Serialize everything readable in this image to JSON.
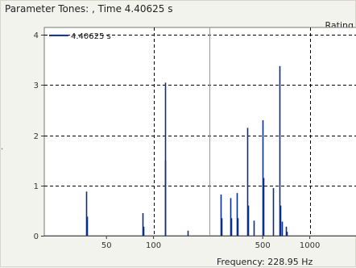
{
  "window": {
    "title": "Parameter Tones: , Time 4.40625 s",
    "rating_label": "Rating",
    "frequency_readout": "Frequency: 228.95 Hz",
    "left_edge_mark": "."
  },
  "colors": {
    "background": "#f3f3ee",
    "plot_bg": "#ffffff",
    "bar": "#0a2e8c",
    "grid": "#000000",
    "cursor": "#999999"
  },
  "chart_data": {
    "type": "bar",
    "xscale": "log",
    "xlim": [
      20,
      2000
    ],
    "ylim": [
      0,
      4.15
    ],
    "x_ticks": [
      50,
      100,
      500,
      1000
    ],
    "x_tick_labels": [
      "50",
      "100",
      "500",
      "1000"
    ],
    "y_ticks": [
      0,
      1,
      2,
      3,
      4
    ],
    "y_tick_labels": [
      "0",
      "1",
      "2",
      "3",
      "4"
    ],
    "grid": true,
    "legend": {
      "placement": "top-left",
      "entries": [
        "4.40625 s"
      ]
    },
    "cursor_x": 228.95,
    "series": [
      {
        "name": "4.40625 s",
        "x": [
          37,
          37.5,
          85,
          86,
          118,
          119,
          165,
          270,
          272,
          310,
          315,
          340,
          345,
          400,
          405,
          440,
          500,
          505,
          580,
          640,
          645,
          660,
          700,
          710
        ],
        "values": [
          0.88,
          0.38,
          0.45,
          0.18,
          3.05,
          1.5,
          0.1,
          0.82,
          0.35,
          0.75,
          0.35,
          0.85,
          0.35,
          2.15,
          0.6,
          0.3,
          2.3,
          1.15,
          0.95,
          3.38,
          0.6,
          0.28,
          0.18,
          0.08
        ]
      }
    ]
  }
}
